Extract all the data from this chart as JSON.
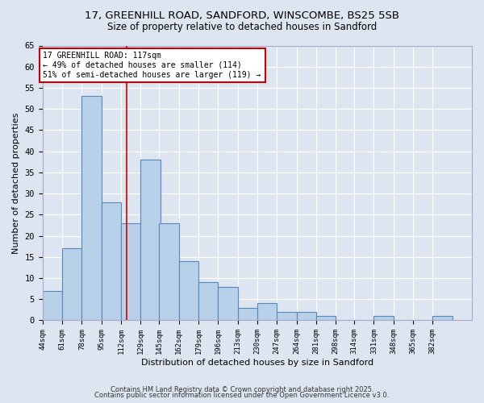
{
  "title_line1": "17, GREENHILL ROAD, SANDFORD, WINSCOMBE, BS25 5SB",
  "title_line2": "Size of property relative to detached houses in Sandford",
  "xlabel": "Distribution of detached houses by size in Sandford",
  "ylabel": "Number of detached properties",
  "bar_values": [
    7,
    17,
    53,
    28,
    23,
    38,
    23,
    14,
    9,
    8,
    3,
    4,
    2,
    2,
    1,
    0,
    0,
    1,
    0,
    0,
    1
  ],
  "bin_edges": [
    44,
    61,
    78,
    95,
    112,
    129,
    145,
    162,
    179,
    196,
    213,
    230,
    247,
    264,
    281,
    298,
    314,
    331,
    348,
    365,
    382,
    399
  ],
  "bar_color": "#b8d0e8",
  "bar_edge_color": "#5588bb",
  "reference_line_x": 117,
  "reference_line_color": "#cc0000",
  "annotation_text": "17 GREENHILL ROAD: 117sqm\n← 49% of detached houses are smaller (114)\n51% of semi-detached houses are larger (119) →",
  "annotation_box_facecolor": "#ffffff",
  "annotation_box_edgecolor": "#cc0000",
  "ylim": [
    0,
    65
  ],
  "yticks": [
    0,
    5,
    10,
    15,
    20,
    25,
    30,
    35,
    40,
    45,
    50,
    55,
    60,
    65
  ],
  "background_color": "#dde5f0",
  "plot_bg_color": "#dde5f0",
  "grid_color": "#ffffff",
  "footer_line1": "Contains HM Land Registry data © Crown copyright and database right 2025.",
  "footer_line2": "Contains public sector information licensed under the Open Government Licence v3.0."
}
